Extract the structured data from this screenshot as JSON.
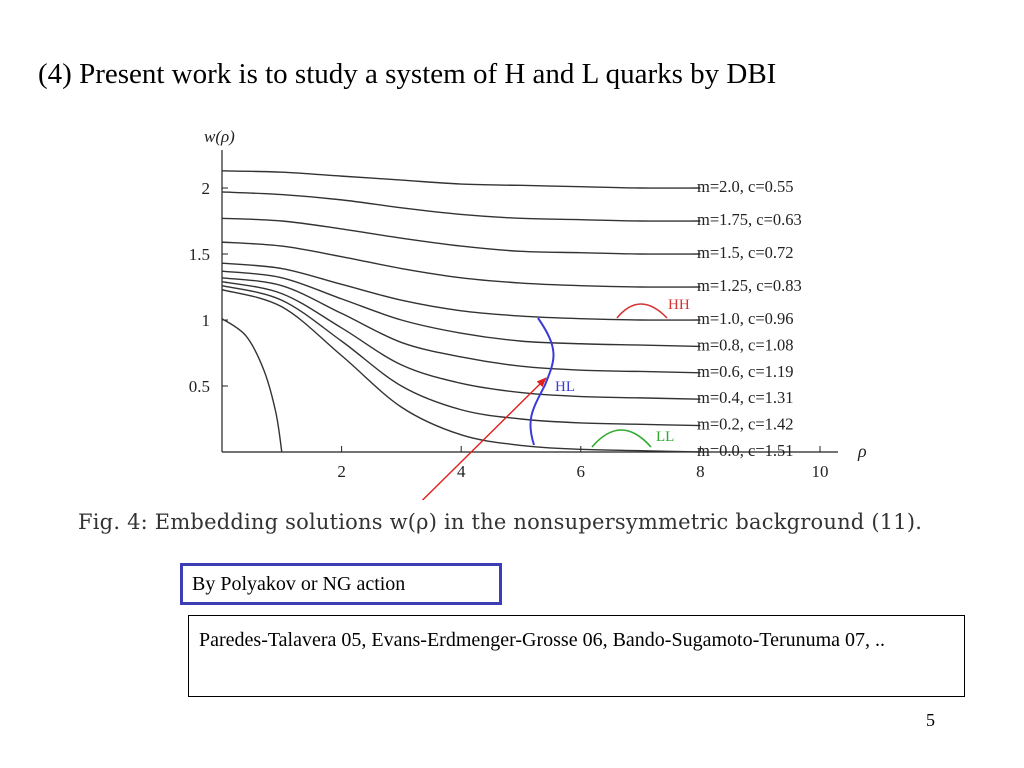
{
  "slide": {
    "title": "(4) Present work is to study a system of H and L quarks by DBI",
    "caption": "Fig. 4: Embedding solutions w(ρ) in the nonsupersymmetric background (11).",
    "box_polyakov": "By Polyakov or NG action",
    "box_refs": "Paredes-Talavera 05, Evans-Erdmenger-Grosse 06, Bando-Sugamoto-Terunuma 07, ..",
    "page_number": "5",
    "arrow_color": "#e0201c"
  },
  "chart_data": {
    "type": "line",
    "ylabel": "w(ρ)",
    "xlabel": "ρ",
    "xlim": [
      0,
      10
    ],
    "ylim": [
      0,
      2.2
    ],
    "xticks": [
      "2",
      "4",
      "6",
      "8",
      "10"
    ],
    "yticks": [
      "0.5",
      "1",
      "1.5",
      "2"
    ],
    "grid": false,
    "line_color": "#333333",
    "series": [
      {
        "name": "m=2.0, c=0.55",
        "points": [
          [
            0,
            2.13
          ],
          [
            1,
            2.12
          ],
          [
            2,
            2.09
          ],
          [
            3,
            2.06
          ],
          [
            4,
            2.03
          ],
          [
            5,
            2.02
          ],
          [
            6,
            2.01
          ],
          [
            7,
            2.0
          ],
          [
            8,
            2.0
          ]
        ]
      },
      {
        "name": "m=1.75, c=0.63",
        "points": [
          [
            0,
            1.97
          ],
          [
            1,
            1.95
          ],
          [
            2,
            1.91
          ],
          [
            3,
            1.85
          ],
          [
            4,
            1.8
          ],
          [
            5,
            1.77
          ],
          [
            6,
            1.76
          ],
          [
            7,
            1.75
          ],
          [
            8,
            1.75
          ]
        ]
      },
      {
        "name": "m=1.5, c=0.72",
        "points": [
          [
            0,
            1.77
          ],
          [
            1,
            1.75
          ],
          [
            2,
            1.69
          ],
          [
            3,
            1.62
          ],
          [
            4,
            1.56
          ],
          [
            5,
            1.52
          ],
          [
            6,
            1.51
          ],
          [
            7,
            1.5
          ],
          [
            8,
            1.5
          ]
        ]
      },
      {
        "name": "m=1.25, c=0.83",
        "points": [
          [
            0,
            1.59
          ],
          [
            1,
            1.56
          ],
          [
            2,
            1.48
          ],
          [
            3,
            1.39
          ],
          [
            4,
            1.32
          ],
          [
            5,
            1.28
          ],
          [
            6,
            1.26
          ],
          [
            7,
            1.25
          ],
          [
            8,
            1.25
          ]
        ]
      },
      {
        "name": "m=1.0, c=0.96",
        "points": [
          [
            0,
            1.43
          ],
          [
            1,
            1.39
          ],
          [
            2,
            1.27
          ],
          [
            3,
            1.15
          ],
          [
            4,
            1.07
          ],
          [
            5,
            1.03
          ],
          [
            6,
            1.01
          ],
          [
            7,
            1.0
          ],
          [
            8,
            1.0
          ]
        ]
      },
      {
        "name": "m=0.8, c=1.08",
        "points": [
          [
            0,
            1.37
          ],
          [
            1,
            1.32
          ],
          [
            2,
            1.16
          ],
          [
            3,
            1.0
          ],
          [
            4,
            0.9
          ],
          [
            5,
            0.84
          ],
          [
            6,
            0.82
          ],
          [
            7,
            0.81
          ],
          [
            8,
            0.8
          ]
        ]
      },
      {
        "name": "m=0.6, c=1.19",
        "points": [
          [
            0,
            1.32
          ],
          [
            1,
            1.26
          ],
          [
            2,
            1.05
          ],
          [
            3,
            0.83
          ],
          [
            4,
            0.72
          ],
          [
            5,
            0.65
          ],
          [
            6,
            0.62
          ],
          [
            7,
            0.61
          ],
          [
            8,
            0.6
          ]
        ]
      },
      {
        "name": "m=0.4, c=1.31",
        "points": [
          [
            0,
            1.29
          ],
          [
            1,
            1.2
          ],
          [
            2,
            0.94
          ],
          [
            3,
            0.66
          ],
          [
            4,
            0.52
          ],
          [
            5,
            0.45
          ],
          [
            6,
            0.42
          ],
          [
            7,
            0.41
          ],
          [
            8,
            0.4
          ]
        ]
      },
      {
        "name": "m=0.2, c=1.42",
        "points": [
          [
            0,
            1.26
          ],
          [
            1,
            1.15
          ],
          [
            2,
            0.84
          ],
          [
            3,
            0.5
          ],
          [
            4,
            0.32
          ],
          [
            5,
            0.25
          ],
          [
            6,
            0.22
          ],
          [
            7,
            0.21
          ],
          [
            8,
            0.2
          ]
        ]
      },
      {
        "name": "m=0.0, c=1.51",
        "points": [
          [
            0,
            1.23
          ],
          [
            1,
            1.1
          ],
          [
            2,
            0.73
          ],
          [
            3,
            0.34
          ],
          [
            4,
            0.13
          ],
          [
            5,
            0.05
          ],
          [
            6,
            0.02
          ],
          [
            7,
            0.01
          ],
          [
            8,
            0.0
          ]
        ]
      },
      {
        "name": "",
        "points": [
          [
            0,
            1.01
          ],
          [
            0.4,
            0.88
          ],
          [
            0.7,
            0.62
          ],
          [
            0.9,
            0.3
          ],
          [
            1.0,
            0.0
          ]
        ]
      }
    ],
    "annotations": [
      {
        "text": "HH",
        "color": "#d43434"
      },
      {
        "text": "HL",
        "color": "#3a3ad8"
      },
      {
        "text": "LL",
        "color": "#2faa2f"
      }
    ]
  }
}
